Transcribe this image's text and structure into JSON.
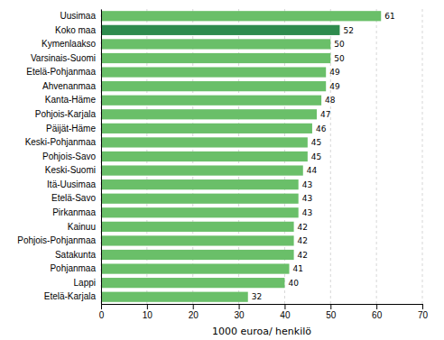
{
  "chart_data": {
    "type": "bar",
    "orientation": "horizontal",
    "categories": [
      "Etelä-Karjala",
      "Lappi",
      "Pohjanmaa",
      "Satakunta",
      "Pohjois-Pohjanmaa",
      "Kainuu",
      "Pirkanmaa",
      "Etelä-Savo",
      "Itä-Uusimaa",
      "Keski-Suomi",
      "Pohjois-Savo",
      "Keski-Pohjanmaa",
      "Päijät-Häme",
      "Pohjois-Karjala",
      "Kanta-Häme",
      "Ahvenanmaa",
      "Etelä-Pohjanmaa",
      "Varsinais-Suomi",
      "Kymenlaakso",
      "Koko maa",
      "Uusimaa"
    ],
    "values": [
      32,
      40,
      41,
      42,
      42,
      42,
      43,
      43,
      43,
      44,
      45,
      45,
      46,
      47,
      48,
      49,
      49,
      50,
      50,
      52,
      61
    ],
    "colors": [
      "#6abf69",
      "#6abf69",
      "#6abf69",
      "#6abf69",
      "#6abf69",
      "#6abf69",
      "#6abf69",
      "#6abf69",
      "#6abf69",
      "#6abf69",
      "#6abf69",
      "#6abf69",
      "#6abf69",
      "#6abf69",
      "#6abf69",
      "#6abf69",
      "#6abf69",
      "#6abf69",
      "#6abf69",
      "#2e8b4e",
      "#6abf69"
    ],
    "xlabel": "1000 euroa/ henkilö",
    "xlim": [
      0,
      70
    ],
    "xticks": [
      0,
      10,
      20,
      30,
      40,
      50,
      60,
      70
    ],
    "grid": true,
    "data_labels": true
  }
}
